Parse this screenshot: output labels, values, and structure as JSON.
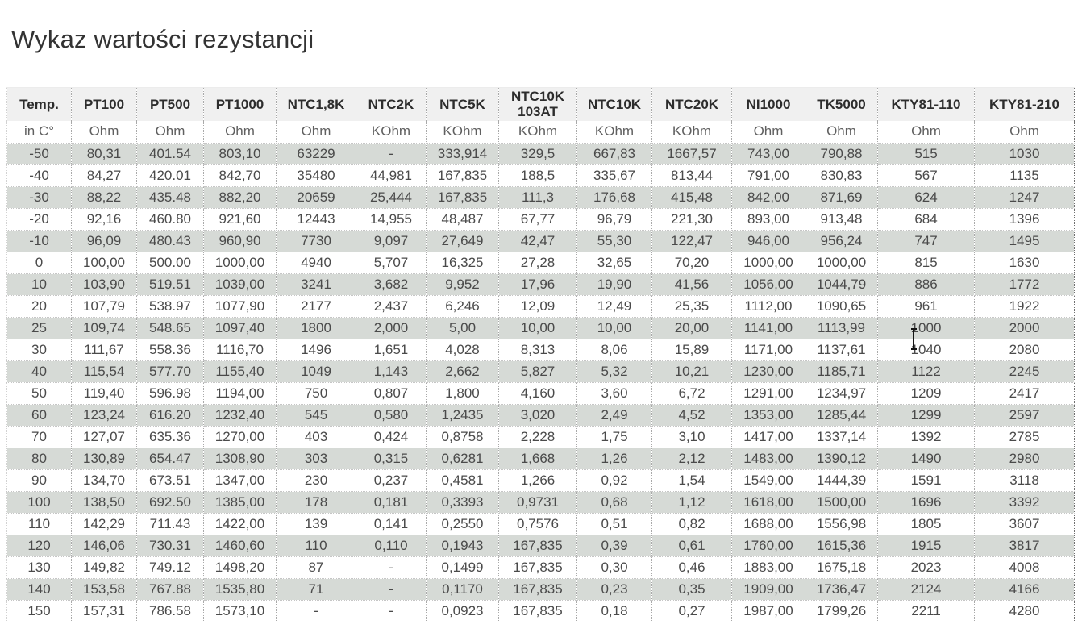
{
  "page": {
    "title": "Wykaz wartości rezystancji"
  },
  "colors": {
    "row_stripe": "#d6dad6",
    "header_bg": "#f0f0f0",
    "data_text": "#4a4a4a",
    "header_text": "#2d2d2d",
    "unit_text": "#606060"
  },
  "table": {
    "columns": [
      {
        "label": "Temp.",
        "unit": "in C°"
      },
      {
        "label": "PT100",
        "unit": "Ohm"
      },
      {
        "label": "PT500",
        "unit": "Ohm"
      },
      {
        "label": "PT1000",
        "unit": "Ohm"
      },
      {
        "label": "NTC1,8K",
        "unit": "Ohm"
      },
      {
        "label": "NTC2K",
        "unit": "KOhm"
      },
      {
        "label": "NTC5K",
        "unit": "KOhm"
      },
      {
        "label": "NTC10K 103AT",
        "unit": "KOhm"
      },
      {
        "label": "NTC10K",
        "unit": "KOhm"
      },
      {
        "label": "NTC20K",
        "unit": "KOhm"
      },
      {
        "label": "NI1000",
        "unit": "Ohm"
      },
      {
        "label": "TK5000",
        "unit": "Ohm"
      },
      {
        "label": "KTY81-110",
        "unit": "Ohm"
      },
      {
        "label": "KTY81-210",
        "unit": "Ohm"
      }
    ],
    "rows": [
      [
        "-50",
        "80,31",
        "401.54",
        "803,10",
        "63229",
        "-",
        "333,914",
        "329,5",
        "667,83",
        "1667,57",
        "743,00",
        "790,88",
        "515",
        "1030"
      ],
      [
        "-40",
        "84,27",
        "420.01",
        "842,70",
        "35480",
        "44,981",
        "167,835",
        "188,5",
        "335,67",
        "813,44",
        "791,00",
        "830,83",
        "567",
        "1135"
      ],
      [
        "-30",
        "88,22",
        "435.48",
        "882,20",
        "20659",
        "25,444",
        "167,835",
        "111,3",
        "176,68",
        "415,48",
        "842,00",
        "871,69",
        "624",
        "1247"
      ],
      [
        "-20",
        "92,16",
        "460.80",
        "921,60",
        "12443",
        "14,955",
        "48,487",
        "67,77",
        "96,79",
        "221,30",
        "893,00",
        "913,48",
        "684",
        "1396"
      ],
      [
        "-10",
        "96,09",
        "480.43",
        "960,90",
        "7730",
        "9,097",
        "27,649",
        "42,47",
        "55,30",
        "122,47",
        "946,00",
        "956,24",
        "747",
        "1495"
      ],
      [
        "0",
        "100,00",
        "500.00",
        "1000,00",
        "4940",
        "5,707",
        "16,325",
        "27,28",
        "32,65",
        "70,20",
        "1000,00",
        "1000,00",
        "815",
        "1630"
      ],
      [
        "10",
        "103,90",
        "519.51",
        "1039,00",
        "3241",
        "3,682",
        "9,952",
        "17,96",
        "19,90",
        "41,56",
        "1056,00",
        "1044,79",
        "886",
        "1772"
      ],
      [
        "20",
        "107,79",
        "538.97",
        "1077,90",
        "2177",
        "2,437",
        "6,246",
        "12,09",
        "12,49",
        "25,35",
        "1112,00",
        "1090,65",
        "961",
        "1922"
      ],
      [
        "25",
        "109,74",
        "548.65",
        "1097,40",
        "1800",
        "2,000",
        "5,00",
        "10,00",
        "10,00",
        "20,00",
        "1141,00",
        "1113,99",
        "1000",
        "2000"
      ],
      [
        "30",
        "111,67",
        "558.36",
        "1116,70",
        "1496",
        "1,651",
        "4,028",
        "8,313",
        "8,06",
        "15,89",
        "1171,00",
        "1137,61",
        "1040",
        "2080"
      ],
      [
        "40",
        "115,54",
        "577.70",
        "1155,40",
        "1049",
        "1,143",
        "2,662",
        "5,827",
        "5,32",
        "10,21",
        "1230,00",
        "1185,71",
        "1122",
        "2245"
      ],
      [
        "50",
        "119,40",
        "596.98",
        "1194,00",
        "750",
        "0,807",
        "1,800",
        "4,160",
        "3,60",
        "6,72",
        "1291,00",
        "1234,97",
        "1209",
        "2417"
      ],
      [
        "60",
        "123,24",
        "616.20",
        "1232,40",
        "545",
        "0,580",
        "1,2435",
        "3,020",
        "2,49",
        "4,52",
        "1353,00",
        "1285,44",
        "1299",
        "2597"
      ],
      [
        "70",
        "127,07",
        "635.36",
        "1270,00",
        "403",
        "0,424",
        "0,8758",
        "2,228",
        "1,75",
        "3,10",
        "1417,00",
        "1337,14",
        "1392",
        "2785"
      ],
      [
        "80",
        "130,89",
        "654.47",
        "1308,90",
        "303",
        "0,315",
        "0,6281",
        "1,668",
        "1,26",
        "2,12",
        "1483,00",
        "1390,12",
        "1490",
        "2980"
      ],
      [
        "90",
        "134,70",
        "673.51",
        "1347,00",
        "230",
        "0,237",
        "0,4581",
        "1,266",
        "0,92",
        "1,54",
        "1549,00",
        "1444,39",
        "1591",
        "3118"
      ],
      [
        "100",
        "138,50",
        "692.50",
        "1385,00",
        "178",
        "0,181",
        "0,3393",
        "0,9731",
        "0,68",
        "1,12",
        "1618,00",
        "1500,00",
        "1696",
        "3392"
      ],
      [
        "110",
        "142,29",
        "711.43",
        "1422,00",
        "139",
        "0,141",
        "0,2550",
        "0,7576",
        "0,51",
        "0,82",
        "1688,00",
        "1556,98",
        "1805",
        "3607"
      ],
      [
        "120",
        "146,06",
        "730.31",
        "1460,60",
        "110",
        "0,110",
        "0,1943",
        "167,835",
        "0,39",
        "0,61",
        "1760,00",
        "1615,36",
        "1915",
        "3817"
      ],
      [
        "130",
        "149,82",
        "749.12",
        "1498,20",
        "87",
        "-",
        "0,1499",
        "167,835",
        "0,30",
        "0,46",
        "1883,00",
        "1675,18",
        "2023",
        "4008"
      ],
      [
        "140",
        "153,58",
        "767.88",
        "1535,80",
        "71",
        "-",
        "0,1170",
        "167,835",
        "0,23",
        "0,35",
        "1909,00",
        "1736,47",
        "2124",
        "4166"
      ],
      [
        "150",
        "157,31",
        "786.58",
        "1573,10",
        "-",
        "-",
        "0,0923",
        "167,835",
        "0,18",
        "0,27",
        "1987,00",
        "1799,26",
        "2211",
        "4280"
      ]
    ]
  }
}
